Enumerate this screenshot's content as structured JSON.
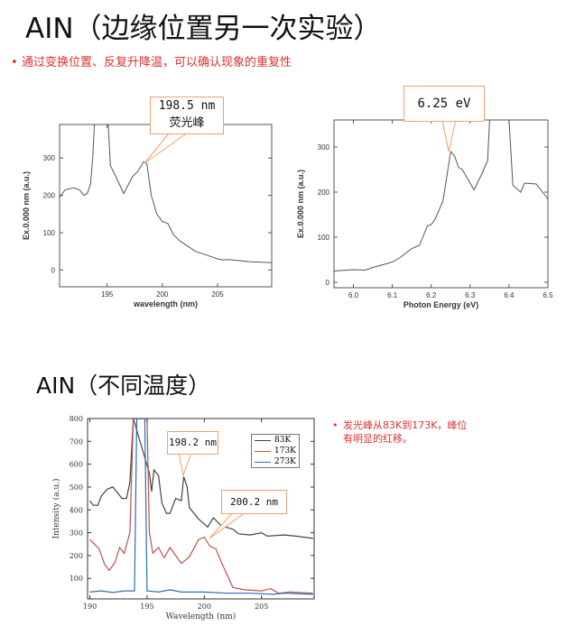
{
  "slide": {
    "title": "AIN（边缘位置另一次实验）",
    "bullet": "通过变换位置、反复升降温，可以确认现象的重复性",
    "title2": "AIN（不同温度）",
    "bullet2": "发光峰从83K到173K，峰位有明显的红移。",
    "bullet_color": "#e03030"
  },
  "chart_data": [
    {
      "type": "line",
      "xlabel": "wavelength (nm)",
      "ylabel": "Ex.0.000 nm (a.u.)",
      "xlim": [
        190.7,
        209.9
      ],
      "ylim": [
        -45,
        390
      ],
      "xticks": [
        195,
        200,
        205
      ],
      "yticks": [
        0,
        100,
        200,
        300
      ],
      "grid": false,
      "annotation": {
        "line1": "198.5 nm",
        "line2": "荧光峰",
        "x": 198.4,
        "y": 290
      },
      "series": [
        {
          "color": "#555555",
          "x": [
            190.7,
            191.2,
            192,
            192.5,
            192.9,
            193.2,
            193.5,
            193.7,
            193.85,
            195.1,
            195.3,
            195.8,
            196.5,
            197.3,
            197.8,
            198.3,
            198.6,
            199,
            199.5,
            200,
            200.5,
            201,
            201.5,
            202,
            203,
            204,
            205,
            205.5,
            206,
            207,
            208,
            209.9
          ],
          "y": [
            195,
            215,
            220,
            215,
            200,
            205,
            230,
            300,
            390,
            390,
            280,
            250,
            205,
            250,
            265,
            290,
            285,
            200,
            150,
            130,
            125,
            95,
            80,
            70,
            50,
            40,
            30,
            27,
            28,
            25,
            22,
            20
          ]
        }
      ]
    },
    {
      "type": "line",
      "xlabel": "Photon Energy (eV)",
      "ylabel": "Ex.0.000 nm (a.u.)",
      "xlim": [
        5.95,
        6.5
      ],
      "ylim": [
        -12,
        360
      ],
      "xticks": [
        6.0,
        6.1,
        6.2,
        6.3,
        6.4,
        6.5
      ],
      "yticks": [
        0,
        100,
        200,
        300
      ],
      "grid": false,
      "annotation": {
        "line1": "6.25 eV",
        "x": 6.25,
        "y": 290
      },
      "series": [
        {
          "color": "#555555",
          "x": [
            5.95,
            6.0,
            6.03,
            6.05,
            6.08,
            6.1,
            6.12,
            6.15,
            6.17,
            6.19,
            6.2,
            6.21,
            6.23,
            6.25,
            6.26,
            6.27,
            6.28,
            6.31,
            6.33,
            6.345,
            6.35,
            6.4,
            6.41,
            6.43,
            6.44,
            6.47,
            6.5
          ],
          "y": [
            25,
            28,
            27,
            33,
            40,
            45,
            55,
            75,
            82,
            125,
            128,
            140,
            180,
            290,
            280,
            255,
            250,
            205,
            240,
            270,
            360,
            360,
            215,
            200,
            220,
            218,
            185
          ]
        }
      ]
    },
    {
      "type": "line",
      "xlabel": "Wavelength (nm)",
      "ylabel": "Intensity (a.u.)",
      "xlim": [
        189.8,
        209.6
      ],
      "ylim": [
        10,
        800
      ],
      "xticks": [
        190,
        195,
        200,
        205
      ],
      "yticks": [
        100,
        200,
        300,
        400,
        500,
        600,
        700,
        800
      ],
      "grid": false,
      "legend": "top-right",
      "annotations": [
        {
          "label": "198.2 nm",
          "x": 198.2,
          "y": 545
        },
        {
          "label": "200.2 nm",
          "x": 200.2,
          "y": 280
        }
      ],
      "series": [
        {
          "name": "83K",
          "color": "#444444",
          "x": [
            190,
            190.3,
            190.7,
            191,
            191.5,
            192,
            192.5,
            192.8,
            193.2,
            193.5,
            193.8,
            195.2,
            195.4,
            195.6,
            196,
            196.3,
            196.7,
            197,
            197.5,
            198,
            198.2,
            198.5,
            198.7,
            199.5,
            200.3,
            200.8,
            201.5,
            202.5,
            203,
            204,
            205,
            205.5,
            207,
            208,
            209.5
          ],
          "y": [
            440,
            420,
            420,
            460,
            490,
            500,
            470,
            450,
            450,
            520,
            800,
            560,
            480,
            575,
            550,
            430,
            385,
            385,
            450,
            440,
            545,
            500,
            410,
            360,
            325,
            365,
            330,
            315,
            295,
            290,
            300,
            285,
            290,
            285,
            275
          ]
        },
        {
          "name": "173K",
          "color": "#c0504d",
          "x": [
            190,
            190.8,
            191.3,
            191.7,
            192.2,
            192.6,
            193,
            193.5,
            193.8,
            195,
            195.2,
            195.5,
            196,
            196.5,
            197,
            197.5,
            198,
            198.7,
            199.5,
            200,
            200.5,
            201,
            201.5,
            202.5,
            203.5,
            205,
            205.8,
            206.5,
            207.5,
            209.5
          ],
          "y": [
            270,
            230,
            160,
            135,
            170,
            235,
            210,
            300,
            800,
            800,
            300,
            210,
            235,
            190,
            235,
            200,
            165,
            195,
            270,
            280,
            240,
            230,
            170,
            60,
            50,
            45,
            55,
            35,
            40,
            35
          ]
        },
        {
          "name": "273K",
          "color": "#2e6db4",
          "x": [
            190,
            191,
            192,
            193,
            193.9,
            194.1,
            194.8,
            195,
            196,
            197,
            198,
            200,
            202,
            204,
            206,
            207,
            209.5
          ],
          "y": [
            40,
            45,
            38,
            45,
            45,
            800,
            800,
            45,
            40,
            50,
            40,
            40,
            35,
            35,
            30,
            35,
            30
          ]
        }
      ]
    }
  ]
}
